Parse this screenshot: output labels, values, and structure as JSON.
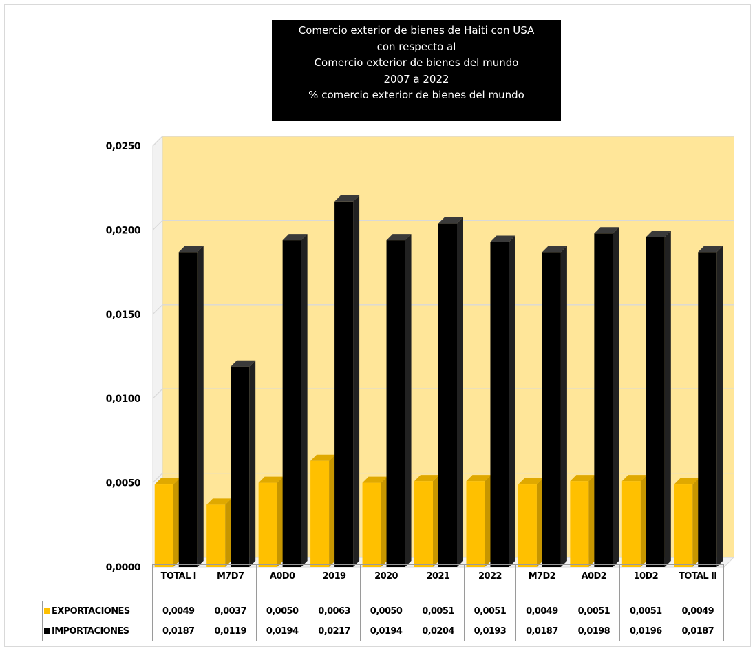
{
  "chart_data": {
    "type": "bar",
    "title_lines": [
      "Comercio exterior de bienes de Haiti con USA",
      "con respecto al",
      "Comercio exterior de bienes del mundo",
      "2007 a 2022",
      "% comercio exterior de bienes del mundo"
    ],
    "categories": [
      "TOTAL I",
      "M7D7",
      "A0D0",
      "2019",
      "2020",
      "2021",
      "2022",
      "M7D2",
      "A0D2",
      "10D2",
      "TOTAL II"
    ],
    "series": [
      {
        "name": "EXPORTACIONES",
        "color": "#ffc000",
        "values": [
          0.0049,
          0.0037,
          0.005,
          0.0063,
          0.005,
          0.0051,
          0.0051,
          0.0049,
          0.0051,
          0.0051,
          0.0049
        ],
        "labels": [
          "0,0049",
          "0,0037",
          "0,0050",
          "0,0063",
          "0,0050",
          "0,0051",
          "0,0051",
          "0,0049",
          "0,0051",
          "0,0051",
          "0,0049"
        ]
      },
      {
        "name": "IMPORTACIONES",
        "color": "#000000",
        "values": [
          0.0187,
          0.0119,
          0.0194,
          0.0217,
          0.0194,
          0.0204,
          0.0193,
          0.0187,
          0.0198,
          0.0196,
          0.0187
        ],
        "labels": [
          "0,0187",
          "0,0119",
          "0,0194",
          "0,0217",
          "0,0194",
          "0,0204",
          "0,0193",
          "0,0187",
          "0,0198",
          "0,0196",
          "0,0187"
        ]
      }
    ],
    "ylim": [
      0,
      0.025
    ],
    "yticks": [
      0,
      0.005,
      0.01,
      0.015,
      0.02,
      0.025
    ],
    "ytick_labels": [
      "0,0000",
      "0,0050",
      "0,0100",
      "0,0150",
      "0,0200",
      "0,0250"
    ],
    "grid": true,
    "plot_background": "#ffe699",
    "legend": "data table below chart",
    "three_d": true
  }
}
